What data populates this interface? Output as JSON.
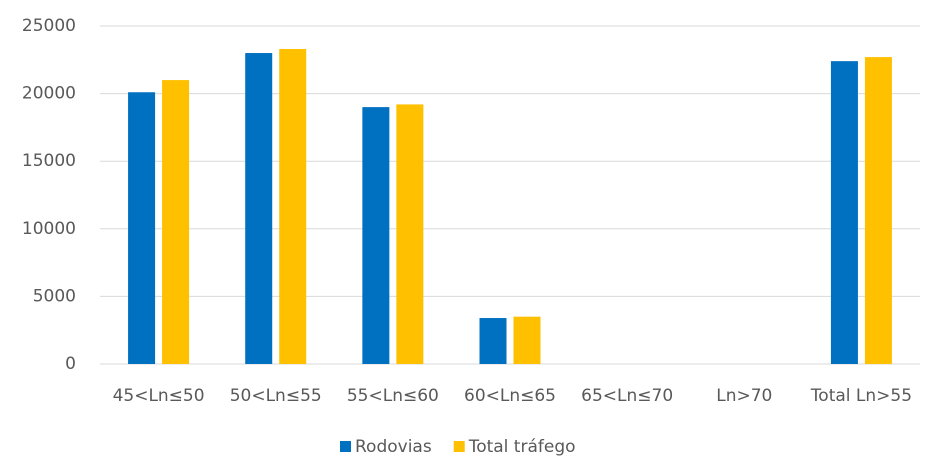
{
  "chart_data": {
    "type": "bar",
    "categories": [
      "45<Ln≤50",
      "50<Ln≤55",
      "55<Ln≤60",
      "60<Ln≤65",
      "65<Ln≤70",
      "Ln>70",
      "Total Ln>55"
    ],
    "series": [
      {
        "name": "Rodovias",
        "color": "#0070c0",
        "values": [
          20100,
          23000,
          19000,
          3400,
          0,
          0,
          22400
        ]
      },
      {
        "name": "Total tráfego",
        "color": "#ffc000",
        "values": [
          21000,
          23300,
          19200,
          3500,
          0,
          0,
          22700
        ]
      }
    ],
    "ylim": [
      0,
      25000
    ],
    "yticks": [
      0,
      5000,
      10000,
      15000,
      20000,
      25000
    ],
    "grid": true,
    "legend": "bottom"
  }
}
